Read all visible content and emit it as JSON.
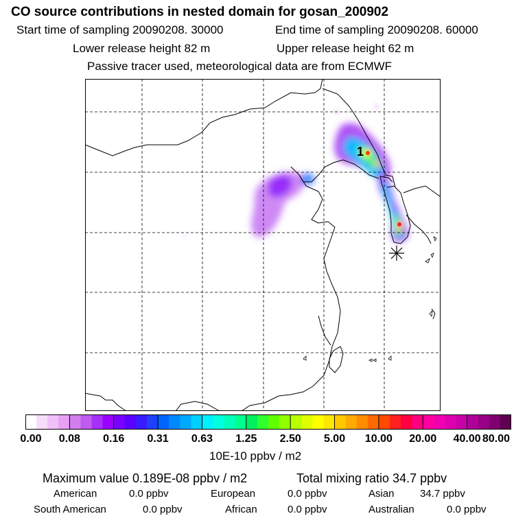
{
  "header": {
    "title": "CO  source contributions in nested domain for gosan_200902",
    "start_label": "Start time of sampling 20090208. 30000",
    "end_label": "End time of sampling 20090208. 60000",
    "lower_label": "Lower release height   82 m",
    "upper_label": "Upper release height   62 m",
    "tracer_label": "Passive tracer used, meteorological data are from ECMWF"
  },
  "map": {
    "release_marker_label": "1",
    "receptor_marker": "asterisk"
  },
  "colorbar": {
    "unit_label": "10E-10 ppbv / m2",
    "tick_labels": [
      "0.00",
      "0.08",
      "0.16",
      "0.31",
      "0.63",
      "1.25",
      "2.50",
      "5.00",
      "10.00",
      "20.00",
      "40.00",
      "80.00"
    ],
    "colors": [
      "#ffffff",
      "#f8dcfb",
      "#f0c0f8",
      "#e8a0f5",
      "#d27df0",
      "#bf5cf0",
      "#a630f5",
      "#9c00ff",
      "#7a00ff",
      "#5a00ff",
      "#3a1aff",
      "#1e40ff",
      "#0064ff",
      "#0088ff",
      "#00a8ff",
      "#00cfff",
      "#00f0ff",
      "#00ffe0",
      "#00ffb8",
      "#00ff90",
      "#00f060",
      "#30ff30",
      "#60ff00",
      "#90ff00",
      "#b8ff00",
      "#dfff00",
      "#ffff00",
      "#ffe600",
      "#ffc800",
      "#ffaa00",
      "#ff8c00",
      "#ff6a00",
      "#ff4a00",
      "#ff2020",
      "#ff0040",
      "#ff0080",
      "#ff00a0",
      "#f000b0",
      "#dd00b0",
      "#c800a8",
      "#b0009a",
      "#980088",
      "#800070",
      "#600050"
    ]
  },
  "stats": {
    "max_label": "Maximum value  0.189E-08 ppbv / m2",
    "total_label": "Total mixing ratio       34.7 ppbv",
    "american_label": "American",
    "american_value": "0.0 ppbv",
    "european_label": "European",
    "european_value": "0.0 ppbv",
    "asian_label": "Asian",
    "asian_value": "34.7 ppbv",
    "south_american_label": "South American",
    "south_american_value": "0.0 ppbv",
    "african_label": "African",
    "african_value": "0.0 ppbv",
    "australian_label": "Australian",
    "australian_value": "0.0 ppbv"
  }
}
